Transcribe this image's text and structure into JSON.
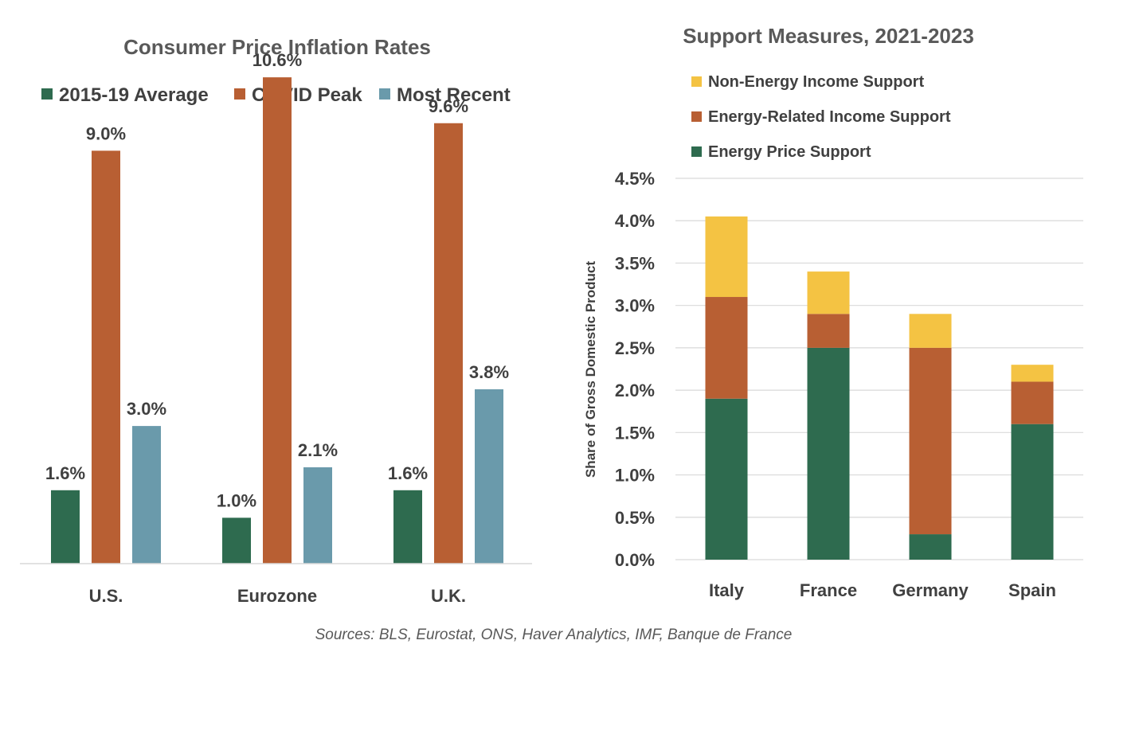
{
  "chart_data": [
    {
      "type": "bar",
      "title": "Consumer Price Inflation Rates",
      "categories": [
        "U.S.",
        "Eurozone",
        "U.K."
      ],
      "series": [
        {
          "name": "2015-19 Average",
          "color": "#2e6b4f",
          "values": [
            1.6,
            1.0,
            1.6
          ],
          "labels": [
            "1.6%",
            "1.0%",
            "1.6%"
          ]
        },
        {
          "name": "COVID Peak",
          "color": "#b85f33",
          "values": [
            9.0,
            10.6,
            9.6
          ],
          "labels": [
            "9.0%",
            "10.6%",
            "9.6%"
          ]
        },
        {
          "name": "Most Recent",
          "color": "#6a9aab",
          "values": [
            3.0,
            2.1,
            3.8
          ],
          "labels": [
            "3.0%",
            "2.1%",
            "3.8%"
          ]
        }
      ],
      "legend": "top",
      "grid": false
    },
    {
      "type": "bar",
      "stacked": true,
      "title": "Support Measures, 2021-2023",
      "categories": [
        "Italy",
        "France",
        "Germany",
        "Spain"
      ],
      "series": [
        {
          "name": "Energy Price Support",
          "color": "#2e6b4f",
          "values": [
            1.9,
            2.5,
            0.3,
            1.6
          ]
        },
        {
          "name": "Energy-Related Income Support",
          "color": "#b85f33",
          "values": [
            1.2,
            0.4,
            2.2,
            0.5
          ]
        },
        {
          "name": "Non-Energy Income Support",
          "color": "#f4c343",
          "values": [
            0.95,
            0.5,
            0.4,
            0.2
          ]
        }
      ],
      "legend_order": [
        "Non-Energy Income Support",
        "Energy-Related Income Support",
        "Energy Price Support"
      ],
      "ylabel": "Share of Gross Domestic Product",
      "ylim": [
        0,
        4.5
      ],
      "yticks": [
        "0.0%",
        "0.5%",
        "1.0%",
        "1.5%",
        "2.0%",
        "2.5%",
        "3.0%",
        "3.5%",
        "4.0%",
        "4.5%"
      ],
      "legend": "top-left",
      "grid": true
    }
  ],
  "footer": {
    "source": "Sources: BLS, Eurostat, ONS, Haver Analytics, IMF, Banque de France"
  }
}
